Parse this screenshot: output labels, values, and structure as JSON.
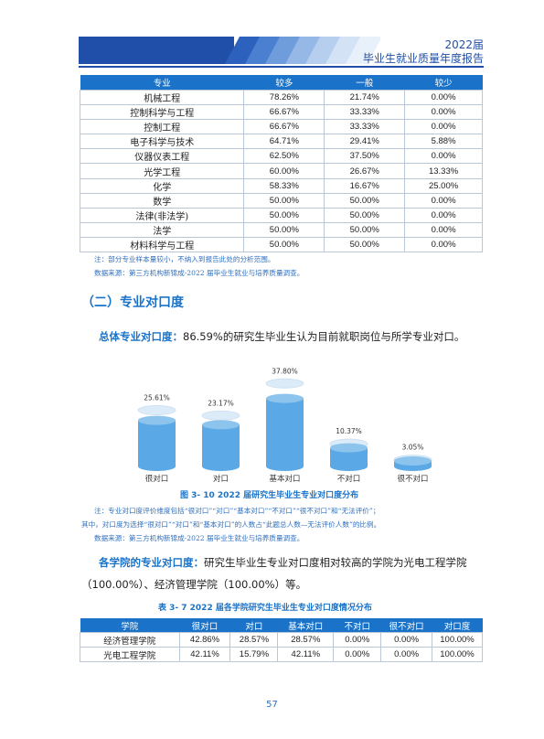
{
  "header": {
    "year": "2022届",
    "title": "毕业生就业质量年度报告",
    "accent_color": "#1f4fa8"
  },
  "table1": {
    "columns": [
      "专业",
      "较多",
      "一般",
      "较少"
    ],
    "rows": [
      [
        "机械工程",
        "78.26%",
        "21.74%",
        "0.00%"
      ],
      [
        "控制科学与工程",
        "66.67%",
        "33.33%",
        "0.00%"
      ],
      [
        "控制工程",
        "66.67%",
        "33.33%",
        "0.00%"
      ],
      [
        "电子科学与技术",
        "64.71%",
        "29.41%",
        "5.88%"
      ],
      [
        "仪器仪表工程",
        "62.50%",
        "37.50%",
        "0.00%"
      ],
      [
        "光学工程",
        "60.00%",
        "26.67%",
        "13.33%"
      ],
      [
        "化学",
        "58.33%",
        "16.67%",
        "25.00%"
      ],
      [
        "数学",
        "50.00%",
        "50.00%",
        "0.00%"
      ],
      [
        "法律(非法学)",
        "50.00%",
        "50.00%",
        "0.00%"
      ],
      [
        "法学",
        "50.00%",
        "50.00%",
        "0.00%"
      ],
      [
        "材料科学与工程",
        "50.00%",
        "50.00%",
        "0.00%"
      ]
    ]
  },
  "notes1": {
    "note": "注：部分专业样本量较小，不纳入到报告此处的分析范围。",
    "source": "数据来源：第三方机构新锦成-2022 届毕业生就业与培养质量调查。"
  },
  "section": {
    "title": "（二）专业对口度"
  },
  "para1": {
    "lead": "总体专业对口度：",
    "text": "86.59%的研究生毕业生认为目前就职岗位与所学专业对口。"
  },
  "chart_data": {
    "type": "bar",
    "categories": [
      "很对口",
      "对口",
      "基本对口",
      "不对口",
      "很不对口"
    ],
    "values": [
      25.61,
      23.17,
      37.8,
      10.37,
      3.05
    ],
    "value_labels": [
      "25.61%",
      "23.17%",
      "37.80%",
      "10.37%",
      "3.05%"
    ],
    "ylim": [
      0,
      40
    ],
    "grid": false,
    "style": "cylinder",
    "color": "#5aa9e6"
  },
  "figure_caption": "图 3- 10    2022 届研究生毕业生专业对口度分布",
  "notes2": {
    "line1": "注：专业对口度评价维度包括“很对口”“对口”“基本对口”“不对口”“很不对口”和“无法评价”；",
    "line2": "其中，对口度为选择“很对口”“对口”和“基本对口”的人数占“此题总人数—无法评价人数”的比例。",
    "source": "数据来源：第三方机构新锦成-2022 届毕业生就业与培养质量调查。"
  },
  "para2": {
    "lead": "各学院的专业对口度：",
    "text1": "研究生毕业生专业对口度相对较高的学院为光电工程学院",
    "text2": "（100.00%）、经济管理学院（100.00%）等。"
  },
  "table2_caption": "表 3- 7    2022 届各学院研究生毕业生专业对口度情况分布",
  "table2": {
    "columns": [
      "学院",
      "很对口",
      "对口",
      "基本对口",
      "不对口",
      "很不对口",
      "对口度"
    ],
    "rows": [
      [
        "经济管理学院",
        "42.86%",
        "28.57%",
        "28.57%",
        "0.00%",
        "0.00%",
        "100.00%"
      ],
      [
        "光电工程学院",
        "42.11%",
        "15.79%",
        "42.11%",
        "0.00%",
        "0.00%",
        "100.00%"
      ]
    ]
  },
  "page_number": "57"
}
